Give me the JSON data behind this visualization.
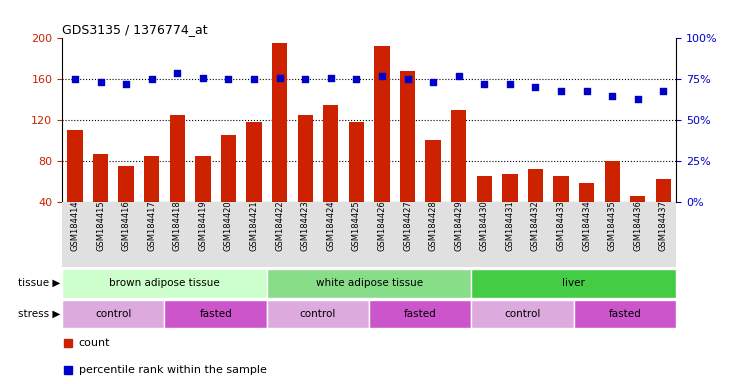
{
  "title": "GDS3135 / 1376774_at",
  "samples": [
    "GSM184414",
    "GSM184415",
    "GSM184416",
    "GSM184417",
    "GSM184418",
    "GSM184419",
    "GSM184420",
    "GSM184421",
    "GSM184422",
    "GSM184423",
    "GSM184424",
    "GSM184425",
    "GSM184426",
    "GSM184427",
    "GSM184428",
    "GSM184429",
    "GSM184430",
    "GSM184431",
    "GSM184432",
    "GSM184433",
    "GSM184434",
    "GSM184435",
    "GSM184436",
    "GSM184437"
  ],
  "counts": [
    110,
    87,
    75,
    85,
    125,
    85,
    105,
    118,
    195,
    125,
    135,
    118,
    193,
    168,
    100,
    130,
    65,
    67,
    72,
    65,
    58,
    80,
    45,
    62
  ],
  "percentiles": [
    75,
    73,
    72,
    75,
    79,
    76,
    75,
    75,
    76,
    75,
    76,
    75,
    77,
    75,
    73,
    77,
    72,
    72,
    70,
    68,
    68,
    65,
    63,
    68
  ],
  "bar_color": "#cc2200",
  "dot_color": "#0000cc",
  "left_ylim": [
    40,
    200
  ],
  "left_yticks": [
    40,
    80,
    120,
    160,
    200
  ],
  "right_ylim": [
    0,
    100
  ],
  "right_yticks": [
    0,
    25,
    50,
    75,
    100
  ],
  "tissue_groups": [
    {
      "label": "brown adipose tissue",
      "start": 0,
      "end": 8,
      "color": "#ccffcc"
    },
    {
      "label": "white adipose tissue",
      "start": 8,
      "end": 16,
      "color": "#88dd88"
    },
    {
      "label": "liver",
      "start": 16,
      "end": 24,
      "color": "#44cc44"
    }
  ],
  "stress_groups": [
    {
      "label": "control",
      "start": 0,
      "end": 4,
      "color": "#ddaadd"
    },
    {
      "label": "fasted",
      "start": 4,
      "end": 8,
      "color": "#cc55cc"
    },
    {
      "label": "control",
      "start": 8,
      "end": 12,
      "color": "#ddaadd"
    },
    {
      "label": "fasted",
      "start": 12,
      "end": 16,
      "color": "#cc55cc"
    },
    {
      "label": "control",
      "start": 16,
      "end": 20,
      "color": "#ddaadd"
    },
    {
      "label": "fasted",
      "start": 20,
      "end": 24,
      "color": "#cc55cc"
    }
  ],
  "legend_items": [
    {
      "label": "count",
      "color": "#cc2200",
      "marker": "s"
    },
    {
      "label": "percentile rank within the sample",
      "color": "#0000cc",
      "marker": "s"
    }
  ],
  "grid_yticks": [
    80,
    120,
    160
  ],
  "grid_color": "black",
  "grid_linestyle": ":"
}
